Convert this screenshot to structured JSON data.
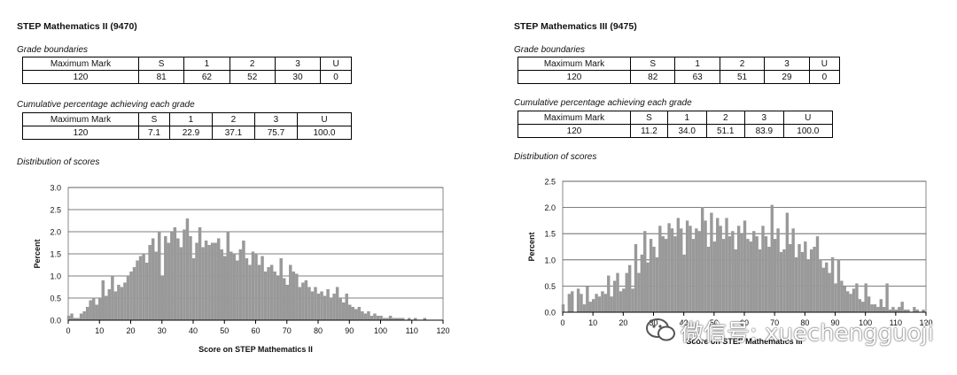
{
  "panels": [
    {
      "title": "STEP Mathematics II (9470)",
      "grade_boundaries_label": "Grade boundaries",
      "cumulative_label": "Cumulative percentage achieving each grade",
      "distribution_label": "Distribution of scores",
      "header": [
        "Maximum Mark",
        "S",
        "1",
        "2",
        "3",
        "U"
      ],
      "boundaries": [
        "120",
        "81",
        "62",
        "52",
        "30",
        "0"
      ],
      "cumulative": [
        "120",
        "7.1",
        "22.9",
        "37.1",
        "75.7",
        "100.0"
      ]
    },
    {
      "title": "STEP Mathematics III (9475)",
      "grade_boundaries_label": "Grade boundaries",
      "cumulative_label": "Cumulative percentage achieving each grade",
      "distribution_label": "Distribution of scores",
      "header": [
        "Maximum Mark",
        "S",
        "1",
        "2",
        "3",
        "U"
      ],
      "boundaries": [
        "120",
        "82",
        "63",
        "51",
        "29",
        "0"
      ],
      "cumulative": [
        "120",
        "11.2",
        "34.0",
        "51.1",
        "83.9",
        "100.0"
      ]
    }
  ],
  "watermark": {
    "text": "微信号: xuechengguoji",
    "icon": "wechat-icon"
  },
  "chart_data": [
    {
      "type": "bar",
      "title": "",
      "xlabel": "Score on STEP Mathematics II",
      "ylabel": "Percent",
      "xlim": [
        0,
        120
      ],
      "ylim": [
        0,
        3.0
      ],
      "yticks": [
        "0.0",
        "0.5",
        "1.0",
        "1.5",
        "2.0",
        "2.5",
        "3.0"
      ],
      "xticks": [
        "0",
        "10",
        "20",
        "30",
        "40",
        "50",
        "60",
        "70",
        "80",
        "90",
        "100",
        "110",
        "120"
      ],
      "grid": true,
      "bar_color": "#999999",
      "x": [
        0,
        1,
        2,
        3,
        4,
        5,
        6,
        7,
        8,
        9,
        10,
        11,
        12,
        13,
        14,
        15,
        16,
        17,
        18,
        19,
        20,
        21,
        22,
        23,
        24,
        25,
        26,
        27,
        28,
        29,
        30,
        31,
        32,
        33,
        34,
        35,
        36,
        37,
        38,
        39,
        40,
        41,
        42,
        43,
        44,
        45,
        46,
        47,
        48,
        49,
        50,
        51,
        52,
        53,
        54,
        55,
        56,
        57,
        58,
        59,
        60,
        61,
        62,
        63,
        64,
        65,
        66,
        67,
        68,
        69,
        70,
        71,
        72,
        73,
        74,
        75,
        76,
        77,
        78,
        79,
        80,
        81,
        82,
        83,
        84,
        85,
        86,
        87,
        88,
        89,
        90,
        91,
        92,
        93,
        94,
        95,
        96,
        97,
        98,
        99,
        100,
        101,
        102,
        103,
        104,
        105,
        106,
        107,
        108,
        109,
        110,
        111,
        112,
        113,
        114,
        115,
        116,
        117,
        118,
        119,
        120
      ],
      "values": [
        0.1,
        0.15,
        0.05,
        0.05,
        0.15,
        0.2,
        0.3,
        0.45,
        0.5,
        0.35,
        0.5,
        0.9,
        0.55,
        0.7,
        1.0,
        0.65,
        0.8,
        0.75,
        0.85,
        1.0,
        1.1,
        1.2,
        1.35,
        1.45,
        1.5,
        1.3,
        1.7,
        1.85,
        1.55,
        2.0,
        1.0,
        1.9,
        1.75,
        2.0,
        2.1,
        1.85,
        1.65,
        2.05,
        2.3,
        1.9,
        1.4,
        1.75,
        2.1,
        1.65,
        1.8,
        1.7,
        1.75,
        1.75,
        1.85,
        1.6,
        1.45,
        2.0,
        1.55,
        1.5,
        1.35,
        1.6,
        1.8,
        1.4,
        1.25,
        1.55,
        1.5,
        1.25,
        1.45,
        1.1,
        1.2,
        1.25,
        1.1,
        1.0,
        1.4,
        0.95,
        0.8,
        1.25,
        1.1,
        1.05,
        0.75,
        0.85,
        0.9,
        0.75,
        0.65,
        0.75,
        0.6,
        0.65,
        0.55,
        0.7,
        0.5,
        0.6,
        0.75,
        0.5,
        0.4,
        0.6,
        0.35,
        0.3,
        0.25,
        0.3,
        0.2,
        0.15,
        0.2,
        0.1,
        0.15,
        0.1,
        0.1,
        0.05,
        0.05,
        0.1,
        0.05,
        0.05,
        0.05,
        0.05,
        0.0,
        0.05,
        0.0,
        0.05,
        0.0,
        0.0,
        0.05,
        0.0,
        0.0,
        0.0,
        0.0,
        0.0,
        0.0
      ]
    },
    {
      "type": "bar",
      "title": "",
      "xlabel": "Score on STEP Mathematics III",
      "ylabel": "Percent",
      "xlim": [
        0,
        120
      ],
      "ylim": [
        0,
        2.5
      ],
      "yticks": [
        "0.0",
        "0.5",
        "1.0",
        "1.5",
        "2.0",
        "2.5"
      ],
      "xticks": [
        "0",
        "10",
        "20",
        "30",
        "40",
        "50",
        "60",
        "70",
        "80",
        "90",
        "100",
        "110",
        "120"
      ],
      "grid": true,
      "bar_color": "#999999",
      "x": [
        0,
        1,
        2,
        3,
        4,
        5,
        6,
        7,
        8,
        9,
        10,
        11,
        12,
        13,
        14,
        15,
        16,
        17,
        18,
        19,
        20,
        21,
        22,
        23,
        24,
        25,
        26,
        27,
        28,
        29,
        30,
        31,
        32,
        33,
        34,
        35,
        36,
        37,
        38,
        39,
        40,
        41,
        42,
        43,
        44,
        45,
        46,
        47,
        48,
        49,
        50,
        51,
        52,
        53,
        54,
        55,
        56,
        57,
        58,
        59,
        60,
        61,
        62,
        63,
        64,
        65,
        66,
        67,
        68,
        69,
        70,
        71,
        72,
        73,
        74,
        75,
        76,
        77,
        78,
        79,
        80,
        81,
        82,
        83,
        84,
        85,
        86,
        87,
        88,
        89,
        90,
        91,
        92,
        93,
        94,
        95,
        96,
        97,
        98,
        99,
        100,
        101,
        102,
        103,
        104,
        105,
        106,
        107,
        108,
        109,
        110,
        111,
        112,
        113,
        114,
        115,
        116,
        117,
        118,
        119,
        120
      ],
      "values": [
        0.15,
        0.0,
        0.35,
        0.4,
        0.0,
        0.45,
        0.35,
        0.15,
        0.5,
        0.2,
        0.25,
        0.35,
        0.3,
        0.4,
        0.35,
        0.7,
        0.3,
        0.6,
        0.75,
        0.4,
        0.45,
        0.75,
        0.9,
        0.45,
        1.3,
        0.75,
        1.1,
        1.55,
        0.95,
        1.4,
        1.25,
        1.05,
        1.65,
        1.45,
        1.4,
        1.7,
        1.6,
        1.45,
        1.8,
        1.6,
        1.1,
        1.75,
        1.65,
        1.4,
        1.6,
        1.55,
        2.0,
        1.75,
        1.25,
        1.9,
        1.35,
        1.8,
        1.65,
        1.4,
        1.8,
        1.45,
        1.55,
        1.2,
        1.65,
        1.5,
        1.75,
        1.4,
        1.35,
        1.55,
        1.45,
        1.2,
        1.65,
        1.45,
        1.25,
        2.05,
        1.4,
        1.6,
        1.15,
        1.2,
        1.9,
        1.3,
        1.6,
        1.05,
        1.3,
        1.15,
        1.35,
        1.0,
        1.2,
        1.25,
        1.45,
        1.0,
        0.85,
        0.95,
        0.75,
        1.05,
        0.55,
        1.0,
        0.6,
        0.5,
        0.4,
        0.35,
        0.45,
        0.55,
        0.25,
        0.2,
        0.55,
        0.3,
        0.15,
        0.15,
        0.1,
        0.25,
        0.1,
        0.55,
        0.05,
        0.1,
        0.05,
        0.1,
        0.2,
        0.05,
        0.05,
        0.0,
        0.1,
        0.05,
        0.0,
        0.05,
        0.0
      ]
    }
  ]
}
